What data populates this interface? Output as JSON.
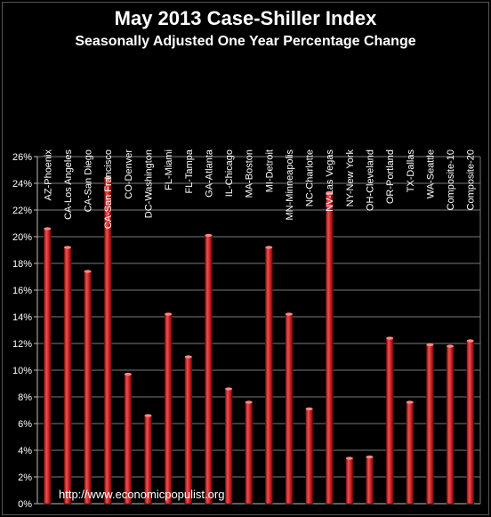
{
  "chart_data": {
    "type": "bar",
    "title": "May 2013 Case-Shiller Index",
    "subtitle": "Seasonally Adjusted One Year Percentage Change",
    "categories": [
      "AZ-Phoenix",
      "CA-Los Angeles",
      "CA-San Diego",
      "CA-San Francisco",
      "CO-Denver",
      "DC-Washington",
      "FL-Miami",
      "FL-Tampa",
      "GA-Atlanta",
      "IL-Chicago",
      "MA-Boston",
      "MI-Detroit",
      "MN-Minneapolis",
      "NC-Charlotte",
      "NV-Las Vegas",
      "NY-New York",
      "OH-Cleveland",
      "OR-Portland",
      "TX-Dallas",
      "WA-Seattle",
      "Composite-10",
      "Composite-20"
    ],
    "values": [
      20.6,
      19.2,
      17.4,
      24.4,
      9.7,
      6.6,
      14.2,
      11.0,
      20.1,
      8.6,
      7.6,
      19.2,
      14.2,
      7.1,
      23.3,
      3.4,
      3.5,
      12.4,
      7.6,
      11.9,
      11.8,
      12.2
    ],
    "ylim": [
      0,
      26
    ],
    "yticks": [
      "0%",
      "2%",
      "4%",
      "6%",
      "8%",
      "10%",
      "12%",
      "14%",
      "16%",
      "18%",
      "20%",
      "22%",
      "24%",
      "26%"
    ],
    "grid": true,
    "bar_color": "#d32a2a",
    "background": "#000000",
    "watermark": "http://www.economicpopulist.org"
  }
}
